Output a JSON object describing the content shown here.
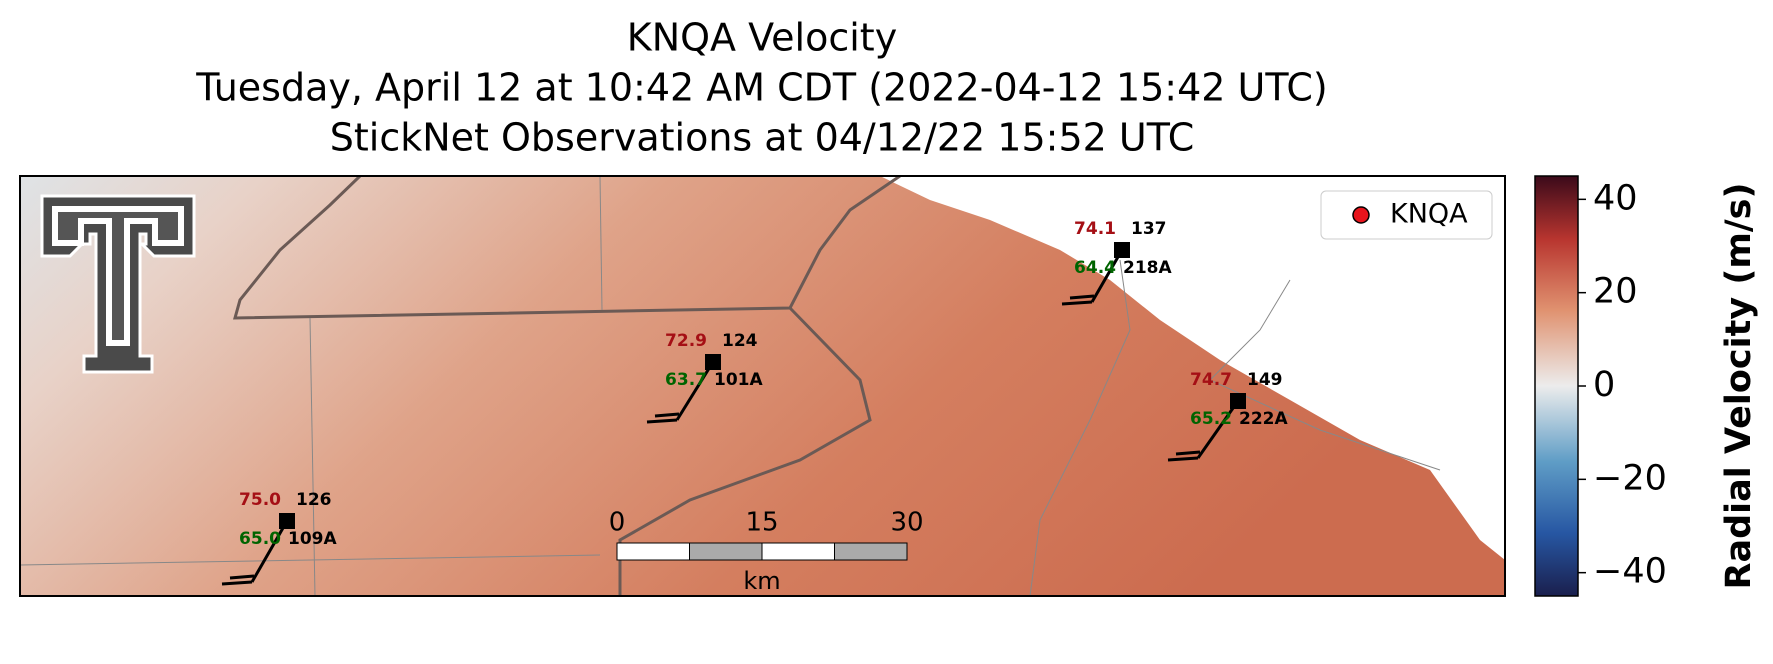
{
  "header": {
    "title": [
      "KNQA Velocity",
      "Tuesday, April 12 at 10:42 AM CDT (2022-04-12 15:42 UTC)",
      "StickNet Observations at 04/12/22 15:52 UTC"
    ]
  },
  "legend": {
    "label": "KNQA"
  },
  "stations": [
    {
      "temperature": "75.0",
      "dewpoint": "65.0",
      "id": "126",
      "code": "109A"
    },
    {
      "temperature": "72.9",
      "dewpoint": "63.7",
      "id": "124",
      "code": "101A"
    },
    {
      "temperature": "74.1",
      "dewpoint": "64.4",
      "id": "137",
      "code": "218A"
    },
    {
      "temperature": "74.7",
      "dewpoint": "65.2",
      "id": "149",
      "code": "222A"
    }
  ],
  "scale_bar": {
    "ticks": [
      0,
      15,
      30
    ],
    "unit": "km"
  },
  "colorbar": {
    "label": "Radial Velocity (m/s)",
    "lim": [
      -45,
      45
    ],
    "ticks": [
      {
        "value": 40,
        "label": "40"
      },
      {
        "value": 20,
        "label": "20"
      },
      {
        "value": 0,
        "label": "0"
      },
      {
        "value": -20,
        "label": "−20"
      },
      {
        "value": -40,
        "label": "−40"
      }
    ]
  }
}
